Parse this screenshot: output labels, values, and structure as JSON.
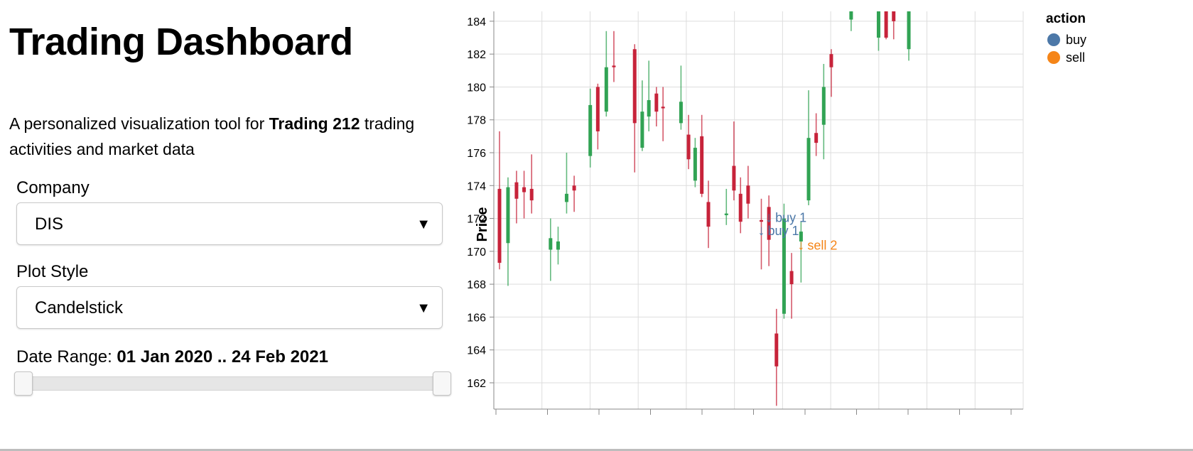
{
  "header": {
    "title": "Trading Dashboard"
  },
  "description": {
    "prefix": "A personalized visualization tool for ",
    "bold": "Trading 212",
    "suffix": " trading activities and market data"
  },
  "controls": {
    "company": {
      "label": "Company",
      "value": "DIS",
      "arrow": "▼"
    },
    "plot_style": {
      "label": "Plot Style",
      "value": "Candelstick",
      "arrow": "▼"
    },
    "date_range": {
      "label": "Date Range: ",
      "value": "01 Jan 2020 .. 24 Feb 2021",
      "lower_fraction": 0,
      "upper_fraction": 1
    }
  },
  "chart_data": {
    "type": "candlestick",
    "ylabel": "Price",
    "ylim": [
      160.4,
      184.6
    ],
    "yticks": [
      162,
      164,
      166,
      168,
      170,
      172,
      174,
      176,
      178,
      180,
      182,
      184
    ],
    "x_slots": 28,
    "colors": {
      "up": "#31a354",
      "down": "#c7233a",
      "buy": "#4c78a8",
      "sell": "#f58518"
    },
    "legend": {
      "title": "action",
      "items": [
        "buy",
        "sell"
      ]
    },
    "candles": [
      {
        "x": 0.3,
        "open": 173.8,
        "close": 169.3,
        "high": 177.3,
        "low": 168.9
      },
      {
        "x": 0.75,
        "open": 170.5,
        "close": 173.9,
        "high": 174.5,
        "low": 167.9
      },
      {
        "x": 1.2,
        "open": 174.2,
        "close": 173.2,
        "high": 174.9,
        "low": 171.7
      },
      {
        "x": 1.6,
        "open": 173.9,
        "close": 173.6,
        "high": 174.9,
        "low": 172.0
      },
      {
        "x": 2.0,
        "open": 173.8,
        "close": 173.1,
        "high": 175.9,
        "low": 172.3
      },
      {
        "x": 3.0,
        "open": 170.1,
        "close": 170.8,
        "high": 172.0,
        "low": 168.2
      },
      {
        "x": 3.4,
        "open": 170.1,
        "close": 170.6,
        "high": 171.5,
        "low": 169.2
      },
      {
        "x": 3.85,
        "open": 173.0,
        "close": 173.5,
        "high": 176.0,
        "low": 172.3
      },
      {
        "x": 4.25,
        "open": 174.0,
        "close": 173.7,
        "high": 174.6,
        "low": 172.4
      },
      {
        "x": 5.1,
        "open": 175.8,
        "close": 178.9,
        "high": 179.9,
        "low": 175.1
      },
      {
        "x": 5.5,
        "open": 180.0,
        "close": 177.3,
        "high": 180.2,
        "low": 176.2
      },
      {
        "x": 5.95,
        "open": 178.5,
        "close": 181.2,
        "high": 183.4,
        "low": 178.2
      },
      {
        "x": 6.35,
        "open": 181.3,
        "close": 181.2,
        "high": 183.4,
        "low": 180.3
      },
      {
        "x": 7.45,
        "open": 182.3,
        "close": 177.8,
        "high": 182.6,
        "low": 174.8
      },
      {
        "x": 7.85,
        "open": 176.3,
        "close": 178.5,
        "high": 180.4,
        "low": 176.1
      },
      {
        "x": 8.2,
        "open": 178.2,
        "close": 179.2,
        "high": 181.6,
        "low": 177.3
      },
      {
        "x": 8.6,
        "open": 179.6,
        "close": 178.5,
        "high": 180.0,
        "low": 177.6
      },
      {
        "x": 8.95,
        "open": 178.8,
        "close": 178.7,
        "high": 180.0,
        "low": 176.7
      },
      {
        "x": 9.9,
        "open": 177.8,
        "close": 179.1,
        "high": 181.3,
        "low": 177.4
      },
      {
        "x": 10.3,
        "open": 177.1,
        "close": 175.6,
        "high": 178.3,
        "low": 175.0
      },
      {
        "x": 10.65,
        "open": 174.3,
        "close": 176.3,
        "high": 176.9,
        "low": 173.9
      },
      {
        "x": 11.0,
        "open": 177.0,
        "close": 173.5,
        "high": 178.3,
        "low": 173.3
      },
      {
        "x": 11.35,
        "open": 173.0,
        "close": 171.5,
        "high": 174.3,
        "low": 170.2
      },
      {
        "x": 12.3,
        "open": 172.2,
        "close": 172.3,
        "high": 173.8,
        "low": 171.6
      },
      {
        "x": 12.7,
        "open": 175.2,
        "close": 173.7,
        "high": 177.9,
        "low": 173.1
      },
      {
        "x": 13.05,
        "open": 173.5,
        "close": 171.8,
        "high": 174.5,
        "low": 171.1
      },
      {
        "x": 13.45,
        "open": 174.0,
        "close": 172.9,
        "high": 175.2,
        "low": 172.0
      },
      {
        "x": 14.15,
        "open": 171.9,
        "close": 171.8,
        "high": 173.2,
        "low": 168.9
      },
      {
        "x": 14.55,
        "open": 172.7,
        "close": 170.7,
        "high": 173.4,
        "low": 169.1
      },
      {
        "x": 14.95,
        "open": 165.0,
        "close": 163.0,
        "high": 166.5,
        "low": 160.6
      },
      {
        "x": 15.35,
        "open": 166.2,
        "close": 172.0,
        "high": 172.9,
        "low": 165.9
      },
      {
        "x": 15.75,
        "open": 168.8,
        "close": 168.0,
        "high": 169.9,
        "low": 165.9
      },
      {
        "x": 16.25,
        "open": 170.6,
        "close": 171.2,
        "high": 171.8,
        "low": 168.1
      },
      {
        "x": 16.65,
        "open": 173.1,
        "close": 176.9,
        "high": 179.8,
        "low": 172.8
      },
      {
        "x": 17.05,
        "open": 177.2,
        "close": 176.6,
        "high": 178.4,
        "low": 175.8
      },
      {
        "x": 17.45,
        "open": 177.7,
        "close": 180.0,
        "high": 181.4,
        "low": 175.6
      },
      {
        "x": 17.85,
        "open": 182.0,
        "close": 181.2,
        "high": 182.3,
        "low": 179.4
      },
      {
        "x": 18.9,
        "open": 184.1,
        "close": 184.8,
        "high": 185.0,
        "low": 183.4
      },
      {
        "x": 20.35,
        "open": 183.0,
        "close": 184.8,
        "high": 185.0,
        "low": 182.2
      },
      {
        "x": 20.75,
        "open": 184.8,
        "close": 183.0,
        "high": 185.0,
        "low": 182.9
      },
      {
        "x": 21.15,
        "open": 184.8,
        "close": 184.0,
        "high": 185.0,
        "low": 182.9
      },
      {
        "x": 21.95,
        "open": 182.3,
        "close": 184.8,
        "high": 185.0,
        "low": 181.6
      }
    ],
    "annotations": [
      {
        "x": 14.55,
        "y": 172.1,
        "label": "buy 1",
        "action": "buy"
      },
      {
        "x": 14.15,
        "y": 171.3,
        "label": "buy 1",
        "action": "buy"
      },
      {
        "x": 16.25,
        "y": 170.4,
        "label": "sell 2",
        "action": "sell"
      }
    ]
  }
}
